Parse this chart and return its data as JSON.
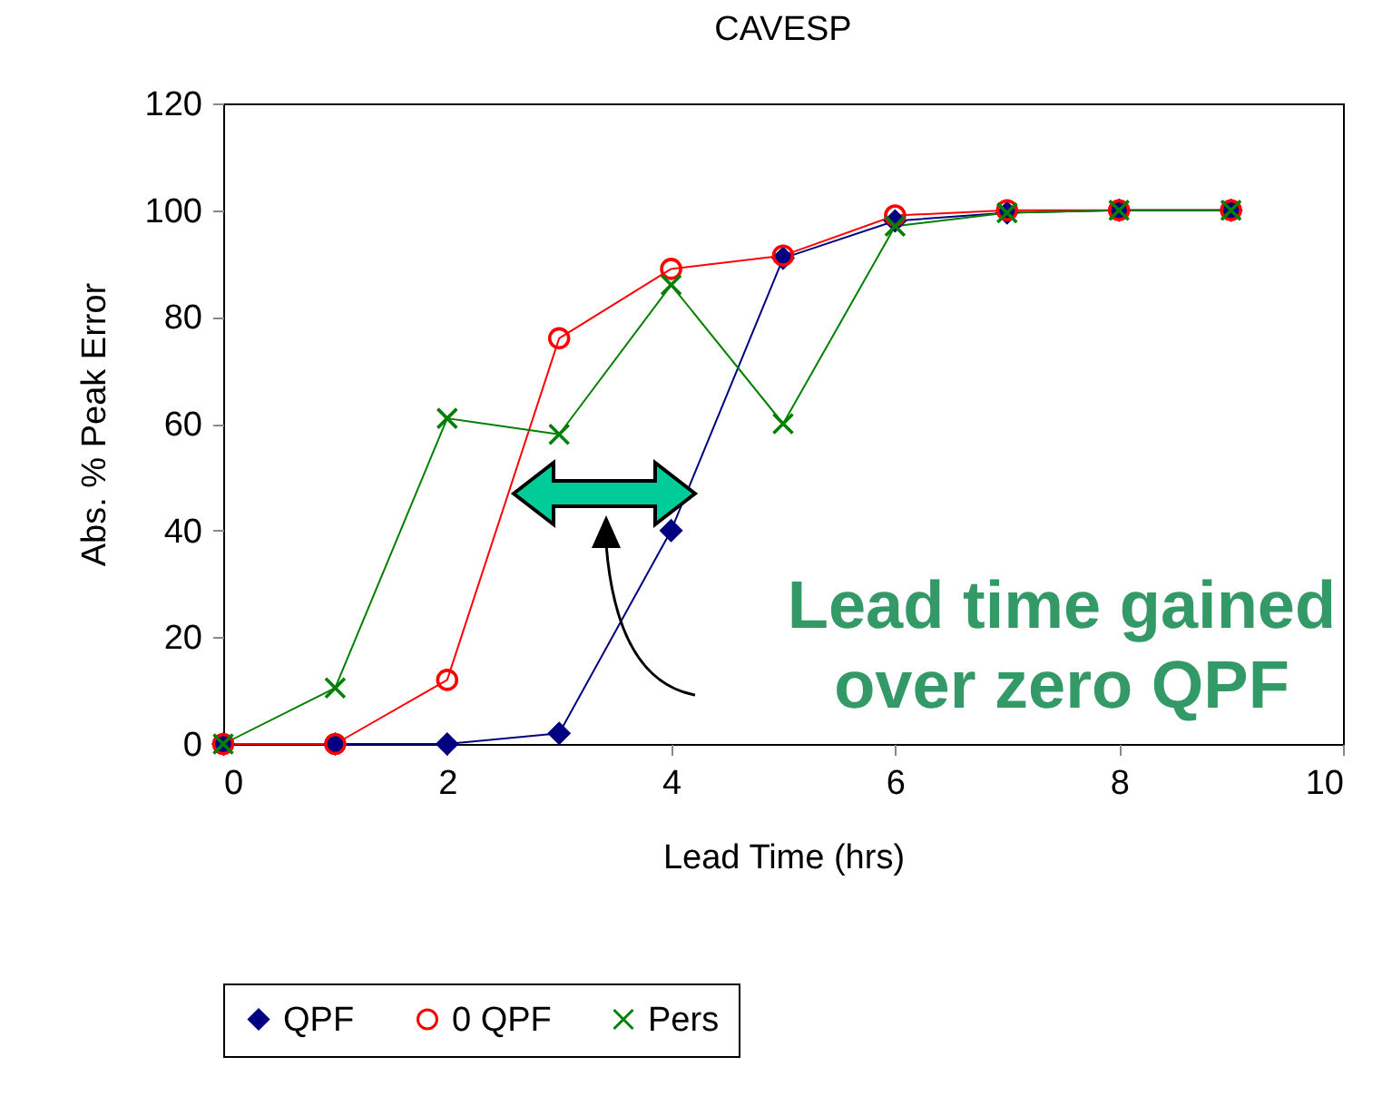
{
  "chart_data": {
    "type": "line",
    "title": "CAVESP",
    "xlabel": "Lead Time (hrs)",
    "ylabel": "Abs. % Peak Error",
    "x": [
      0,
      1,
      2,
      3,
      4,
      5,
      6,
      7,
      8,
      9
    ],
    "series": [
      {
        "name": "QPF",
        "color": "#000080",
        "marker": "diamond",
        "values": [
          0,
          0,
          0,
          2,
          40,
          91,
          98,
          99.5,
          100,
          100
        ]
      },
      {
        "name": "0 QPF",
        "color": "#ff0000",
        "marker": "circle",
        "values": [
          0,
          0,
          12,
          76,
          89,
          91.5,
          99,
          100,
          100,
          100
        ]
      },
      {
        "name": "Pers",
        "color": "#008000",
        "marker": "cross",
        "values": [
          0,
          10.5,
          61,
          58,
          86,
          60,
          97,
          99.5,
          100,
          100
        ]
      }
    ],
    "xlim": [
      0,
      10
    ],
    "xticks": [
      0,
      2,
      4,
      6,
      8,
      10
    ],
    "ylim": [
      0,
      120
    ],
    "yticks": [
      0,
      20,
      40,
      60,
      80,
      100,
      120
    ],
    "grid": false,
    "legend": "bottom",
    "line_style": "solid",
    "annotations": [
      "Lead time gained over zero QPF"
    ]
  }
}
